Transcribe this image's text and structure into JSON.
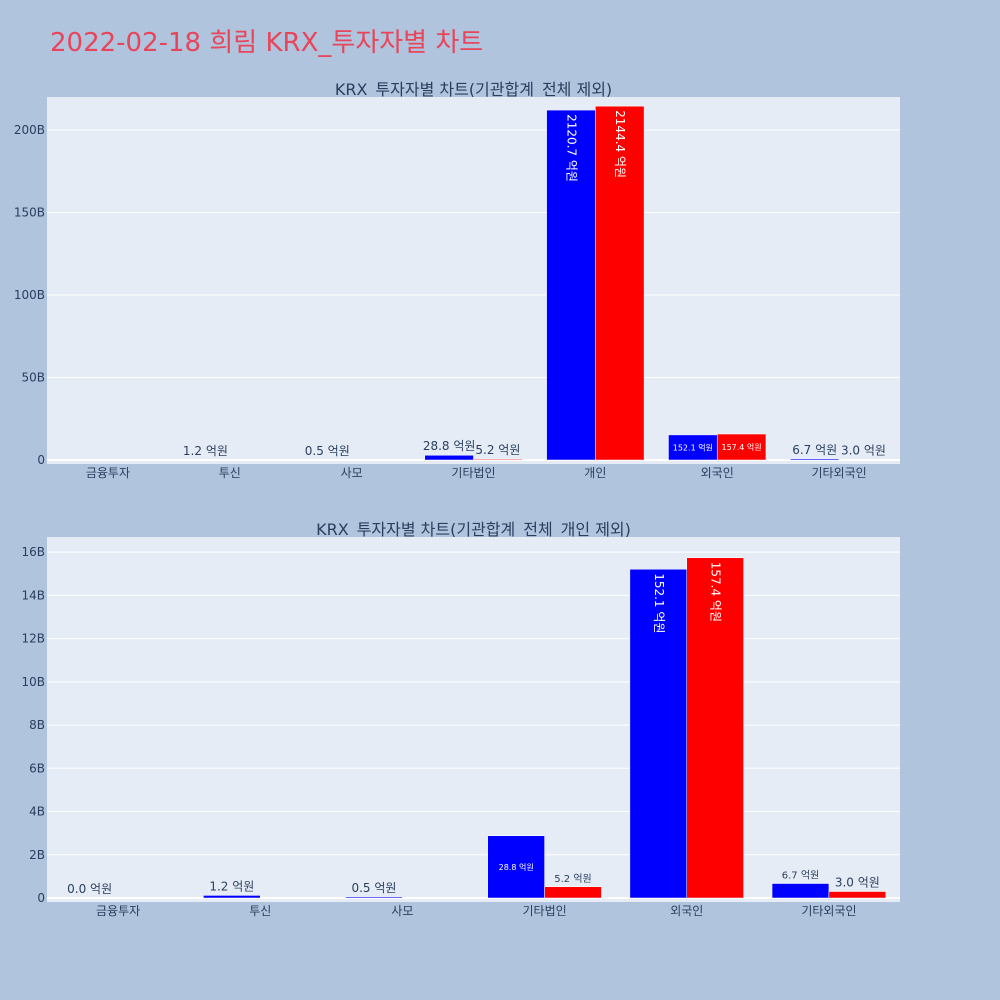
{
  "page_title": "2022-02-18 희림 KRX_투자자별 차트",
  "colors": {
    "series1": "#0000ff",
    "series2": "#ff0000",
    "plot_bg": "#e5ecf6",
    "page_bg": "#b0c4de",
    "title": "#e8455a"
  },
  "chart_data": [
    {
      "type": "bar",
      "title": "KRX_투자자별 차트(기관합계_전체 제외)",
      "categories": [
        "금융투자",
        "투신",
        "사모",
        "기타법인",
        "개인",
        "외국인",
        "기타외국인"
      ],
      "ylim": [
        0,
        220000000000
      ],
      "yticks": [
        0,
        50000000000,
        100000000000,
        150000000000,
        200000000000
      ],
      "ytick_labels": [
        "0",
        "50B",
        "100B",
        "150B",
        "200B"
      ],
      "grid": true,
      "series": [
        {
          "color": "#0000ff",
          "values": [
            null,
            120000000,
            50000000,
            2880000000,
            212070000000,
            15210000000,
            670000000
          ],
          "labels": [
            null,
            "1.2 억원",
            "0.5 억원",
            "28.8 억원",
            "2120.7 억원",
            "152.1 억원",
            "6.7 억원"
          ]
        },
        {
          "color": "#ff0000",
          "values": [
            null,
            null,
            null,
            520000000,
            214440000000,
            15740000000,
            300000000
          ],
          "labels": [
            null,
            null,
            null,
            "5.2 억원",
            "2144.4 억원",
            "157.4 억원",
            "3.0 억원"
          ]
        }
      ]
    },
    {
      "type": "bar",
      "title": "KRX_투자자별 차트(기관합계_전체_개인 제외)",
      "categories": [
        "금융투자",
        "투신",
        "사모",
        "기타법인",
        "외국인",
        "기타외국인"
      ],
      "ylim": [
        0,
        16700000000
      ],
      "yticks": [
        0,
        2000000000,
        4000000000,
        6000000000,
        8000000000,
        10000000000,
        12000000000,
        14000000000,
        16000000000
      ],
      "ytick_labels": [
        "0",
        "2B",
        "4B",
        "6B",
        "8B",
        "10B",
        "12B",
        "14B",
        "16B"
      ],
      "grid": true,
      "series": [
        {
          "color": "#0000ff",
          "values": [
            0,
            120000000,
            50000000,
            2880000000,
            15210000000,
            670000000
          ],
          "labels": [
            "0.0 억원",
            "1.2 억원",
            "0.5 억원",
            "28.8 억원",
            "152.1 억원",
            "6.7 억원"
          ]
        },
        {
          "color": "#ff0000",
          "values": [
            null,
            null,
            null,
            520000000,
            15740000000,
            300000000
          ],
          "labels": [
            null,
            null,
            null,
            "5.2 억원",
            "157.4 억원",
            "3.0 억원"
          ]
        }
      ]
    }
  ]
}
